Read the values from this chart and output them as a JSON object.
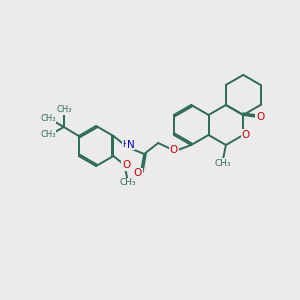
{
  "bg_color": "#ebebeb",
  "bond_color": "#2d6b5a",
  "atom_colors": {
    "O": "#cc0000",
    "N": "#0000cc",
    "C": "#2d6b5a"
  },
  "bond_width": 1.4,
  "dbo": 0.055,
  "figsize": [
    3.0,
    3.0
  ],
  "dpi": 100,
  "xlim": [
    0,
    10
  ],
  "ylim": [
    0,
    10
  ]
}
